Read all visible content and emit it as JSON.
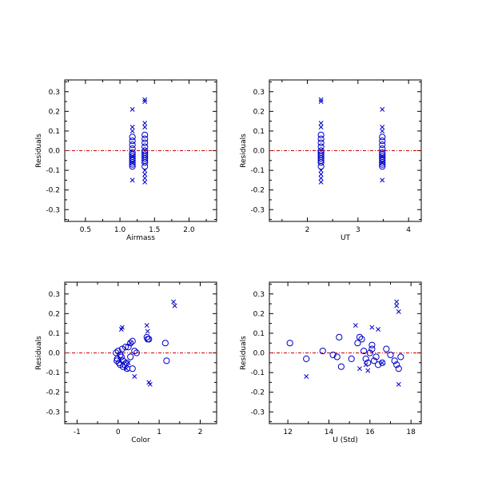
{
  "colors": {
    "marker": "#0000c8",
    "zero_line": "#d00000",
    "axis": "#000000",
    "background": "#ffffff"
  },
  "chart_data": [
    {
      "type": "scatter",
      "xlabel": "Airmass",
      "ylabel": "Residuals",
      "xlim": [
        0.2,
        2.4
      ],
      "ylim": [
        -0.36,
        0.36
      ],
      "xticks": [
        "0.5",
        "1.0",
        "1.5",
        "2.0"
      ],
      "yticks": [
        "-0.3",
        "-0.2",
        "-0.1",
        "0.0",
        "0.1",
        "0.2",
        "0.3"
      ],
      "reference_line": 0,
      "circles": {
        "x": [
          1.18,
          1.18,
          1.18,
          1.18,
          1.18,
          1.18,
          1.18,
          1.18,
          1.18,
          1.18,
          1.18,
          1.18,
          1.36,
          1.36,
          1.36,
          1.36,
          1.36,
          1.36,
          1.36,
          1.36,
          1.36,
          1.36,
          1.36,
          1.36
        ],
        "y": [
          0.07,
          0.05,
          0.03,
          0.01,
          -0.01,
          -0.02,
          -0.03,
          -0.04,
          -0.05,
          -0.06,
          -0.07,
          -0.08,
          0.08,
          0.06,
          0.04,
          0.02,
          0.0,
          -0.01,
          -0.02,
          -0.03,
          -0.04,
          -0.05,
          -0.06,
          -0.08
        ]
      },
      "crosses": {
        "x": [
          1.18,
          1.18,
          1.18,
          1.18,
          1.18,
          1.18,
          1.36,
          1.36,
          1.36,
          1.36,
          1.36,
          1.36,
          1.36,
          1.36
        ],
        "y": [
          0.21,
          0.12,
          0.1,
          -0.03,
          -0.06,
          -0.15,
          0.26,
          0.25,
          0.14,
          0.12,
          -0.1,
          -0.12,
          -0.14,
          -0.16
        ]
      }
    },
    {
      "type": "scatter",
      "xlabel": "UT",
      "ylabel": "Residuals",
      "xlim": [
        1.25,
        4.25
      ],
      "ylim": [
        -0.36,
        0.36
      ],
      "xticks": [
        "2",
        "3",
        "4"
      ],
      "yticks": [
        "-0.3",
        "-0.2",
        "-0.1",
        "0.0",
        "0.1",
        "0.2",
        "0.3"
      ],
      "reference_line": 0,
      "circles": {
        "x": [
          2.27,
          2.27,
          2.27,
          2.27,
          2.27,
          2.27,
          2.27,
          2.27,
          2.27,
          2.27,
          2.27,
          2.27,
          3.48,
          3.48,
          3.48,
          3.48,
          3.48,
          3.48,
          3.48,
          3.48,
          3.48,
          3.48,
          3.48,
          3.48
        ],
        "y": [
          0.08,
          0.06,
          0.04,
          0.02,
          0.0,
          -0.01,
          -0.02,
          -0.03,
          -0.04,
          -0.05,
          -0.06,
          -0.08,
          0.07,
          0.05,
          0.03,
          0.01,
          -0.01,
          -0.02,
          -0.03,
          -0.04,
          -0.05,
          -0.06,
          -0.07,
          -0.08
        ]
      },
      "crosses": {
        "x": [
          2.27,
          2.27,
          2.27,
          2.27,
          2.27,
          2.27,
          2.27,
          2.27,
          3.48,
          3.48,
          3.48,
          3.48,
          3.48,
          3.48
        ],
        "y": [
          0.26,
          0.25,
          0.14,
          0.12,
          -0.1,
          -0.12,
          -0.14,
          -0.16,
          0.21,
          0.12,
          0.1,
          -0.03,
          -0.06,
          -0.15
        ]
      }
    },
    {
      "type": "scatter",
      "xlabel": "Color",
      "ylabel": "Residuals",
      "xlim": [
        -1.3,
        2.4
      ],
      "ylim": [
        -0.36,
        0.36
      ],
      "xticks": [
        "-1",
        "0",
        "1",
        "2"
      ],
      "yticks": [
        "-0.3",
        "-0.2",
        "-0.1",
        "0.0",
        "0.1",
        "0.2",
        "0.3"
      ],
      "reference_line": 0,
      "circles": {
        "x": [
          -0.05,
          0.0,
          0.05,
          -0.02,
          0.08,
          0.1,
          0.02,
          0.12,
          0.15,
          0.2,
          0.25,
          0.3,
          0.35,
          0.4,
          0.3,
          0.22,
          0.12,
          0.05,
          -0.03,
          0.45,
          0.35,
          0.18,
          0.7,
          0.72,
          0.75,
          1.15,
          1.18
        ],
        "y": [
          0.0,
          0.01,
          -0.01,
          -0.03,
          -0.02,
          0.02,
          -0.05,
          -0.04,
          -0.06,
          -0.05,
          0.03,
          0.05,
          0.06,
          0.01,
          -0.02,
          -0.08,
          -0.07,
          -0.06,
          -0.04,
          0.0,
          -0.08,
          0.03,
          0.08,
          0.07,
          0.07,
          0.05,
          -0.04
        ]
      },
      "crosses": {
        "x": [
          0.1,
          0.2,
          0.25,
          0.3,
          0.4,
          0.7,
          0.72,
          0.75,
          0.78,
          1.35,
          1.38,
          0.08
        ],
        "y": [
          0.13,
          -0.08,
          -0.05,
          0.05,
          -0.12,
          0.14,
          0.11,
          -0.15,
          -0.16,
          0.26,
          0.24,
          0.12
        ]
      }
    },
    {
      "type": "scatter",
      "xlabel": "U (Std)",
      "ylabel": "Residuals",
      "xlim": [
        11.1,
        18.5
      ],
      "ylim": [
        -0.36,
        0.36
      ],
      "xticks": [
        "12",
        "14",
        "16",
        "18"
      ],
      "yticks": [
        "-0.3",
        "-0.2",
        "-0.1",
        "0.0",
        "0.1",
        "0.2",
        "0.3"
      ],
      "reference_line": 0,
      "circles": {
        "x": [
          12.1,
          12.9,
          13.7,
          14.2,
          14.4,
          14.5,
          14.6,
          15.1,
          15.4,
          15.5,
          15.6,
          15.7,
          15.8,
          15.9,
          16.0,
          16.1,
          16.1,
          16.2,
          16.3,
          16.4,
          16.6,
          16.8,
          17.0,
          17.2,
          17.3,
          17.4,
          17.5
        ],
        "y": [
          0.05,
          -0.03,
          0.01,
          -0.01,
          -0.02,
          0.08,
          -0.07,
          -0.03,
          0.05,
          0.08,
          0.07,
          0.01,
          -0.03,
          -0.05,
          0.0,
          0.02,
          0.04,
          -0.04,
          -0.02,
          -0.06,
          -0.05,
          0.02,
          -0.01,
          -0.04,
          -0.06,
          -0.08,
          -0.02
        ]
      },
      "crosses": {
        "x": [
          12.9,
          15.3,
          15.5,
          15.9,
          16.1,
          16.4,
          16.6,
          17.3,
          17.3,
          17.4,
          17.4,
          15.8
        ],
        "y": [
          -0.12,
          0.14,
          -0.08,
          -0.09,
          0.13,
          0.12,
          -0.05,
          0.26,
          0.24,
          0.21,
          -0.16,
          -0.06
        ]
      }
    }
  ]
}
